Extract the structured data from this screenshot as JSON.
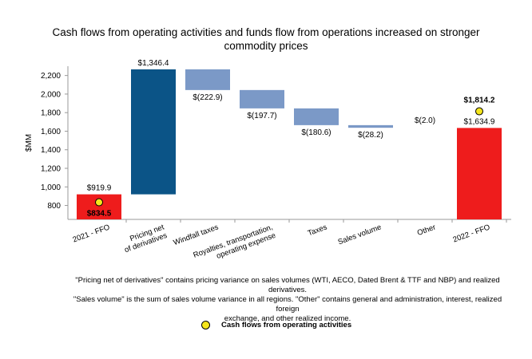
{
  "chart_data": {
    "type": "waterfall",
    "title": "Cash flows from operating activities and funds flow from operations increased on stronger commodity prices",
    "ylabel": "$MM",
    "ylim": [
      650,
      2300
    ],
    "yticks": [
      "800",
      "1,000",
      "1,200",
      "1,400",
      "1,600",
      "1,800",
      "2,000",
      "2,200"
    ],
    "ytick_values": [
      800,
      1000,
      1200,
      1400,
      1600,
      1800,
      2000,
      2200
    ],
    "start": 919.9,
    "bars": [
      {
        "category": "2021 - FFO",
        "kind": "total",
        "value": 919.9,
        "label": "$919.9",
        "color": "#ee1c1c"
      },
      {
        "category": "Pricing net of derivatives",
        "kind": "delta",
        "value": 1346.4,
        "label": "$1,346.4",
        "color": "#0b5487"
      },
      {
        "category": "Windfall taxes",
        "kind": "delta",
        "value": -222.9,
        "label": "$(222.9)",
        "color": "#7b99c7"
      },
      {
        "category": "Royalties, transportation, operating expense",
        "kind": "delta",
        "value": -197.7,
        "label": "$(197.7)",
        "color": "#7b99c7"
      },
      {
        "category": "Taxes",
        "kind": "delta",
        "value": -180.6,
        "label": "$(180.6)",
        "color": "#7b99c7"
      },
      {
        "category": "Sales volume",
        "kind": "delta",
        "value": -28.2,
        "label": "$(28.2)",
        "color": "#7b99c7"
      },
      {
        "category": "Other",
        "kind": "delta",
        "value": -2.0,
        "label": "$(2.0)",
        "color": "#7b99c7"
      },
      {
        "category": "2022 - FFO",
        "kind": "total",
        "value": 1634.9,
        "label": "$1,634.9",
        "color": "#ee1c1c"
      }
    ],
    "cash_flow_points": [
      {
        "category": "2021 - FFO",
        "value": 834.5,
        "label": "$834.5"
      },
      {
        "category": "2022 - FFO",
        "value": 1814.2,
        "label": "$1,814.2"
      }
    ],
    "x_tick_labels": [
      "2021 - FFO",
      "Pricing net\nof derivatives",
      "Windfall taxes",
      "Royalties, transportation,\noperating expense",
      "Taxes",
      "Sales volume",
      "Other",
      "2022 - FFO"
    ],
    "legend": [
      {
        "name": "Cash flows from operating activities",
        "marker": "circle",
        "color": "#f5e61c"
      }
    ]
  },
  "footnote_lines": [
    "\"Pricing net of derivatives\" contains pricing variance on sales volumes (WTI, AECO, Dated Brent & TTF and NBP) and realized derivatives.",
    "\"Sales volume\" is the sum of sales volume variance in all regions. \"Other\" contains general and administration, interest, realized foreign",
    "exchange, and other realized income."
  ],
  "legend_label": "Cash flows from operating activities"
}
